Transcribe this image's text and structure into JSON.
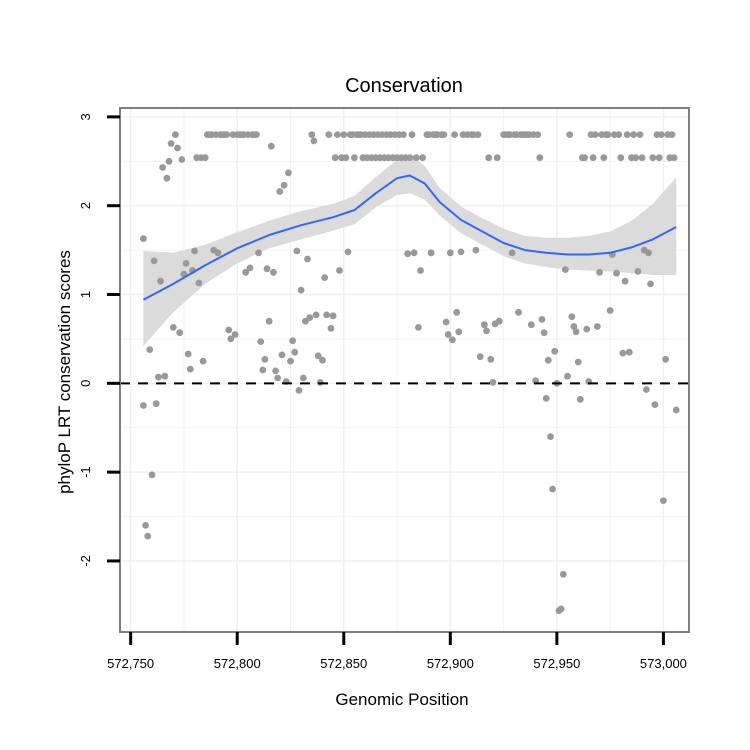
{
  "chart_data": {
    "type": "scatter",
    "title": "Conservation",
    "xlabel": "Genomic Position",
    "ylabel": "phyloP LRT conservation scores",
    "xlim": [
      572745,
      573012
    ],
    "ylim": [
      -2.8,
      3.1
    ],
    "x_ticks": [
      572750,
      572800,
      572850,
      572900,
      572950,
      573000
    ],
    "x_tick_labels": [
      "572,750",
      "572,800",
      "572,850",
      "572,900",
      "572,950",
      "573,000"
    ],
    "y_ticks": [
      -2,
      -1,
      0,
      1,
      2,
      3
    ],
    "y_tick_labels": [
      "-2",
      "-1",
      "0",
      "1",
      "2",
      "3"
    ],
    "grid": true,
    "reference_line": {
      "y": 0,
      "style": "dashed"
    },
    "colors": {
      "points": "#999999",
      "smooth_line": "#3366ff",
      "ribbon": "#d9d9d9",
      "grid": "#f0f0f0",
      "panel_border": "#7f7f7f"
    },
    "points": [
      [
        572756,
        -0.25
      ],
      [
        572756,
        1.63
      ],
      [
        572757,
        -1.6
      ],
      [
        572758,
        -1.72
      ],
      [
        572759,
        0.38
      ],
      [
        572760,
        -1.03
      ],
      [
        572761,
        1.38
      ],
      [
        572762,
        -0.23
      ],
      [
        572763,
        0.07
      ],
      [
        572764,
        1.15
      ],
      [
        572765,
        2.43
      ],
      [
        572766,
        0.08
      ],
      [
        572767,
        2.31
      ],
      [
        572768,
        2.5
      ],
      [
        572769,
        2.7
      ],
      [
        572770,
        0.63
      ],
      [
        572771,
        2.8
      ],
      [
        572772,
        2.65
      ],
      [
        572773,
        0.57
      ],
      [
        572774,
        2.52
      ],
      [
        572775,
        1.23
      ],
      [
        572776,
        1.35
      ],
      [
        572777,
        0.33
      ],
      [
        572778,
        0.16
      ],
      [
        572779,
        1.27
      ],
      [
        572780,
        1.49
      ],
      [
        572781,
        2.54
      ],
      [
        572782,
        1.13
      ],
      [
        572783,
        2.54
      ],
      [
        572784,
        0.25
      ],
      [
        572785,
        2.54
      ],
      [
        572786,
        2.8
      ],
      [
        572787,
        2.8
      ],
      [
        572788,
        2.8
      ],
      [
        572789,
        1.5
      ],
      [
        572790,
        2.8
      ],
      [
        572791,
        1.47
      ],
      [
        572792,
        2.8
      ],
      [
        572793,
        2.8
      ],
      [
        572794,
        2.8
      ],
      [
        572795,
        2.8
      ],
      [
        572796,
        0.6
      ],
      [
        572797,
        0.5
      ],
      [
        572798,
        2.8
      ],
      [
        572799,
        0.55
      ],
      [
        572800,
        2.8
      ],
      [
        572801,
        2.8
      ],
      [
        572802,
        2.8
      ],
      [
        572803,
        2.8
      ],
      [
        572804,
        1.25
      ],
      [
        572805,
        2.8
      ],
      [
        572806,
        1.3
      ],
      [
        572807,
        2.8
      ],
      [
        572808,
        2.8
      ],
      [
        572809,
        2.8
      ],
      [
        572810,
        1.47
      ],
      [
        572811,
        0.47
      ],
      [
        572812,
        0.15
      ],
      [
        572813,
        0.27
      ],
      [
        572814,
        1.29
      ],
      [
        572815,
        0.7
      ],
      [
        572816,
        2.67
      ],
      [
        572817,
        1.25
      ],
      [
        572818,
        0.14
      ],
      [
        572819,
        0.06
      ],
      [
        572820,
        2.16
      ],
      [
        572821,
        0.32
      ],
      [
        572822,
        2.23
      ],
      [
        572823,
        0.02
      ],
      [
        572824,
        2.37
      ],
      [
        572825,
        0.25
      ],
      [
        572826,
        0.48
      ],
      [
        572827,
        0.35
      ],
      [
        572828,
        1.49
      ],
      [
        572829,
        -0.08
      ],
      [
        572830,
        1.05
      ],
      [
        572831,
        0.06
      ],
      [
        572832,
        0.7
      ],
      [
        572833,
        1.4
      ],
      [
        572834,
        0.74
      ],
      [
        572835,
        2.8
      ],
      [
        572836,
        2.73
      ],
      [
        572837,
        0.77
      ],
      [
        572838,
        0.31
      ],
      [
        572839,
        0.01
      ],
      [
        572840,
        0.26
      ],
      [
        572841,
        1.19
      ],
      [
        572842,
        0.77
      ],
      [
        572843,
        2.8
      ],
      [
        572844,
        0.62
      ],
      [
        572845,
        0.76
      ],
      [
        572846,
        2.54
      ],
      [
        572847,
        2.8
      ],
      [
        572848,
        1.27
      ],
      [
        572849,
        2.54
      ],
      [
        572850,
        2.8
      ],
      [
        572851,
        2.54
      ],
      [
        572852,
        1.48
      ],
      [
        572853,
        2.8
      ],
      [
        572854,
        2.8
      ],
      [
        572855,
        2.54
      ],
      [
        572856,
        2.8
      ],
      [
        572857,
        2.8
      ],
      [
        572858,
        2.8
      ],
      [
        572859,
        2.54
      ],
      [
        572860,
        2.8
      ],
      [
        572861,
        2.54
      ],
      [
        572862,
        2.8
      ],
      [
        572863,
        2.54
      ],
      [
        572864,
        2.8
      ],
      [
        572865,
        2.54
      ],
      [
        572866,
        2.8
      ],
      [
        572867,
        2.54
      ],
      [
        572868,
        2.8
      ],
      [
        572869,
        2.54
      ],
      [
        572870,
        2.8
      ],
      [
        572871,
        2.54
      ],
      [
        572872,
        2.8
      ],
      [
        572873,
        2.54
      ],
      [
        572874,
        2.8
      ],
      [
        572875,
        2.54
      ],
      [
        572876,
        2.8
      ],
      [
        572877,
        2.54
      ],
      [
        572878,
        2.8
      ],
      [
        572879,
        2.54
      ],
      [
        572880,
        1.46
      ],
      [
        572881,
        2.54
      ],
      [
        572882,
        2.8
      ],
      [
        572883,
        1.47
      ],
      [
        572884,
        2.54
      ],
      [
        572885,
        0.63
      ],
      [
        572886,
        1.27
      ],
      [
        572887,
        2.54
      ],
      [
        572889,
        2.8
      ],
      [
        572890,
        2.8
      ],
      [
        572891,
        1.47
      ],
      [
        572892,
        2.8
      ],
      [
        572893,
        2.8
      ],
      [
        572894,
        2.8
      ],
      [
        572896,
        2.8
      ],
      [
        572897,
        2.8
      ],
      [
        572898,
        0.69
      ],
      [
        572899,
        0.55
      ],
      [
        572900,
        1.47
      ],
      [
        572901,
        0.49
      ],
      [
        572902,
        2.8
      ],
      [
        572903,
        0.8
      ],
      [
        572904,
        0.58
      ],
      [
        572905,
        1.48
      ],
      [
        572906,
        2.8
      ],
      [
        572908,
        2.8
      ],
      [
        572910,
        2.8
      ],
      [
        572911,
        2.8
      ],
      [
        572912,
        1.5
      ],
      [
        572913,
        2.8
      ],
      [
        572914,
        0.3
      ],
      [
        572916,
        0.66
      ],
      [
        572917,
        0.59
      ],
      [
        572918,
        2.54
      ],
      [
        572919,
        0.27
      ],
      [
        572920,
        0.01
      ],
      [
        572921,
        0.67
      ],
      [
        572922,
        2.54
      ],
      [
        572923,
        0.7
      ],
      [
        572925,
        2.8
      ],
      [
        572926,
        2.8
      ],
      [
        572927,
        2.8
      ],
      [
        572928,
        2.8
      ],
      [
        572929,
        1.47
      ],
      [
        572930,
        2.8
      ],
      [
        572931,
        2.8
      ],
      [
        572932,
        0.8
      ],
      [
        572933,
        2.8
      ],
      [
        572934,
        2.8
      ],
      [
        572935,
        2.8
      ],
      [
        572936,
        2.8
      ],
      [
        572937,
        2.8
      ],
      [
        572938,
        0.66
      ],
      [
        572939,
        2.8
      ],
      [
        572940,
        0.03
      ],
      [
        572941,
        2.8
      ],
      [
        572942,
        2.54
      ],
      [
        572943,
        0.72
      ],
      [
        572944,
        0.57
      ],
      [
        572945,
        -0.17
      ],
      [
        572946,
        0.26
      ],
      [
        572947,
        -0.6
      ],
      [
        572948,
        -1.19
      ],
      [
        572949,
        0.36
      ],
      [
        572950,
        0.0
      ],
      [
        572951,
        -2.56
      ],
      [
        572952,
        -2.54
      ],
      [
        572953,
        -2.15
      ],
      [
        572954,
        1.28
      ],
      [
        572955,
        0.08
      ],
      [
        572956,
        2.8
      ],
      [
        572957,
        0.75
      ],
      [
        572958,
        0.64
      ],
      [
        572959,
        0.58
      ],
      [
        572960,
        0.24
      ],
      [
        572961,
        -0.18
      ],
      [
        572962,
        2.54
      ],
      [
        572963,
        2.54
      ],
      [
        572964,
        0.61
      ],
      [
        572965,
        0.02
      ],
      [
        572966,
        2.8
      ],
      [
        572967,
        2.54
      ],
      [
        572968,
        2.8
      ],
      [
        572969,
        0.64
      ],
      [
        572970,
        1.25
      ],
      [
        572971,
        2.8
      ],
      [
        572972,
        2.54
      ],
      [
        572973,
        2.8
      ],
      [
        572974,
        2.8
      ],
      [
        572975,
        0.82
      ],
      [
        572976,
        1.45
      ],
      [
        572977,
        2.8
      ],
      [
        572978,
        1.24
      ],
      [
        572979,
        2.8
      ],
      [
        572980,
        2.54
      ],
      [
        572981,
        0.34
      ],
      [
        572982,
        1.15
      ],
      [
        572983,
        2.8
      ],
      [
        572984,
        0.35
      ],
      [
        572985,
        2.54
      ],
      [
        572986,
        2.8
      ],
      [
        572987,
        2.54
      ],
      [
        572988,
        1.26
      ],
      [
        572989,
        2.8
      ],
      [
        572990,
        2.54
      ],
      [
        572991,
        1.5
      ],
      [
        572992,
        -0.07
      ],
      [
        572993,
        1.47
      ],
      [
        572994,
        1.12
      ],
      [
        572995,
        2.54
      ],
      [
        572996,
        -0.24
      ],
      [
        572997,
        2.8
      ],
      [
        572998,
        2.54
      ],
      [
        572999,
        2.8
      ],
      [
        573000,
        -1.32
      ],
      [
        573001,
        0.27
      ],
      [
        573002,
        2.8
      ],
      [
        573003,
        2.54
      ],
      [
        573004,
        2.8
      ],
      [
        573005,
        2.54
      ],
      [
        573006,
        -0.3
      ]
    ],
    "smooth": {
      "x": [
        572756,
        572770,
        572785,
        572800,
        572815,
        572830,
        572845,
        572855,
        572865,
        572875,
        572881,
        572888,
        572895,
        572905,
        572915,
        572925,
        572935,
        572945,
        572955,
        572965,
        572975,
        572985,
        572995,
        573006
      ],
      "y": [
        0.94,
        1.12,
        1.33,
        1.52,
        1.67,
        1.78,
        1.87,
        1.95,
        2.14,
        2.31,
        2.34,
        2.25,
        2.04,
        1.84,
        1.71,
        1.58,
        1.5,
        1.47,
        1.45,
        1.45,
        1.47,
        1.53,
        1.62,
        1.76
      ],
      "lower": [
        0.42,
        0.8,
        1.12,
        1.35,
        1.52,
        1.62,
        1.72,
        1.79,
        1.98,
        2.12,
        2.14,
        2.07,
        1.89,
        1.69,
        1.56,
        1.43,
        1.35,
        1.31,
        1.28,
        1.27,
        1.26,
        1.24,
        1.22,
        1.22
      ],
      "upper": [
        1.49,
        1.47,
        1.56,
        1.7,
        1.83,
        1.94,
        2.02,
        2.11,
        2.32,
        2.52,
        2.58,
        2.45,
        2.2,
        1.99,
        1.86,
        1.74,
        1.66,
        1.64,
        1.64,
        1.66,
        1.71,
        1.83,
        2.02,
        2.32
      ]
    }
  }
}
